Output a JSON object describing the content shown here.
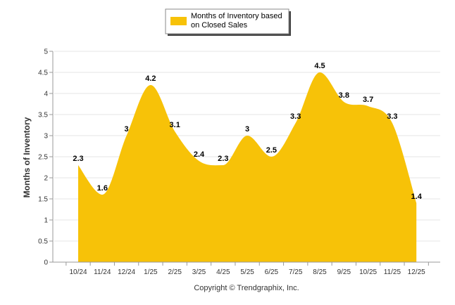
{
  "chart_data": {
    "type": "area",
    "categories": [
      "10/24",
      "11/24",
      "12/24",
      "1/25",
      "2/25",
      "3/25",
      "4/25",
      "5/25",
      "6/25",
      "7/25",
      "8/25",
      "9/25",
      "10/25",
      "11/25",
      "12/25"
    ],
    "series": [
      {
        "name": "Months of Inventory based on Closed Sales",
        "values": [
          2.3,
          1.6,
          3,
          4.2,
          3.1,
          2.4,
          2.3,
          3,
          2.5,
          3.3,
          4.5,
          3.8,
          3.7,
          3.3,
          1.4
        ],
        "data_labels": [
          "2.3",
          "1.6",
          "3",
          "4.2",
          "3.1",
          "2.4",
          "2.3",
          "3",
          "2.5",
          "3.3",
          "4.5",
          "3.8",
          "3.7",
          "3.3",
          "1.4"
        ]
      }
    ],
    "ylabel": "Months of Inventory",
    "xlabel": "",
    "ylim": [
      0,
      5
    ],
    "yticks": [
      "0",
      "0.5",
      "1",
      "1.5",
      "2",
      "2.5",
      "3",
      "3.5",
      "4",
      "4.5",
      "5"
    ],
    "grid": true,
    "legend": {
      "position": "top-center",
      "lines": [
        "Months of Inventory based",
        "on Closed Sales"
      ]
    },
    "footer": "Copyright © Trendgraphix, Inc."
  },
  "colors": {
    "area": "#f7c208",
    "grid": "#e6e6e6",
    "axis": "#999999"
  }
}
